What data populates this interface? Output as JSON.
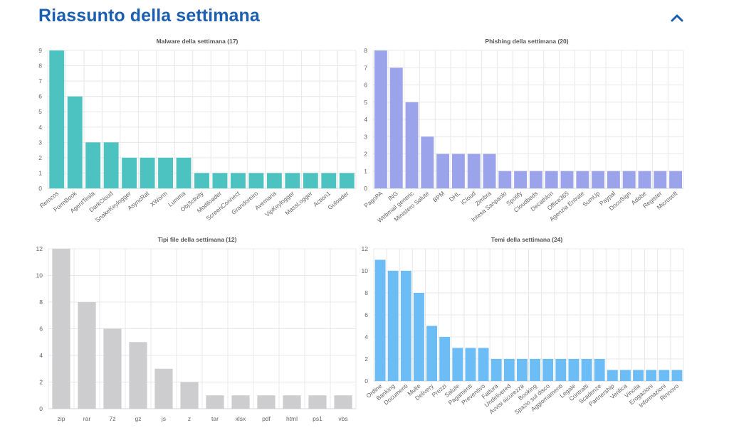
{
  "header": {
    "title": "Riassunto della settimana",
    "collapse_icon": "chevron-up-icon",
    "accent": "#1c5fb0"
  },
  "chart_data": [
    {
      "type": "bar",
      "title": "Malware della settimana (17)",
      "color": "#4cc3c0",
      "categories": [
        "Remcos",
        "FormBook",
        "AgentTesla",
        "DarkCloud",
        "SnakeKeylogger",
        "AsyncRat",
        "XWorm",
        "Lumma",
        "Obj3ctivity",
        "Modiloader",
        "ScreenConnect",
        "Grandoreiro",
        "Avemaria",
        "VipKeylogger",
        "MassLogger",
        "Action1",
        "Guloader"
      ],
      "values": [
        9,
        6,
        3,
        3,
        2,
        2,
        2,
        2,
        1,
        1,
        1,
        1,
        1,
        1,
        1,
        1,
        1
      ],
      "ylim": [
        0,
        9
      ],
      "yticks": [
        0,
        1,
        2,
        3,
        4,
        5,
        6,
        7,
        8,
        9
      ],
      "rotate_labels": true
    },
    {
      "type": "bar",
      "title": "Phishing della settimana (20)",
      "color": "#9ba3ea",
      "categories": [
        "PagoPA",
        "ING",
        "Webmail generic",
        "Ministero Salute",
        "BPM",
        "DHL",
        "iCloud",
        "Zimbra",
        "Intesa Sanpaolo",
        "Spotify",
        "Cloudbeds",
        "Decathlon",
        "Office365",
        "Agenzia Entrate",
        "SumUp",
        "Paypal",
        "DocuSign",
        "Adobe",
        "Register",
        "Microsoft"
      ],
      "values": [
        8,
        7,
        5,
        3,
        2,
        2,
        2,
        2,
        1,
        1,
        1,
        1,
        1,
        1,
        1,
        1,
        1,
        1,
        1,
        1
      ],
      "ylim": [
        0,
        8
      ],
      "yticks": [
        0,
        1,
        2,
        3,
        4,
        5,
        6,
        7,
        8
      ],
      "rotate_labels": true
    },
    {
      "type": "bar",
      "title": "Tipi file della settimana (12)",
      "color": "#cdcdcf",
      "categories": [
        "zip",
        "rar",
        "7z",
        "gz",
        "js",
        "z",
        "tar",
        "xlsx",
        "pdf",
        "html",
        "ps1",
        "vbs"
      ],
      "values": [
        12,
        8,
        6,
        5,
        3,
        2,
        1,
        1,
        1,
        1,
        1,
        1
      ],
      "ylim": [
        0,
        12
      ],
      "yticks": [
        0,
        2,
        4,
        6,
        8,
        10,
        12
      ],
      "rotate_labels": false
    },
    {
      "type": "bar",
      "title": "Temi della settimana (24)",
      "color": "#6cbcf5",
      "categories": [
        "Ordine",
        "Banking",
        "Documenti",
        "Multe",
        "Delivery",
        "Prezzi",
        "Salute",
        "Pagamenti",
        "Preventivo",
        "Fattura",
        "Undelivered",
        "Avvisi sicurezza",
        "Booking",
        "Spazio sul disco",
        "Aggiornamenti",
        "Legale",
        "Contratti",
        "Scadenze",
        "Partnership",
        "Verifica",
        "Vincita",
        "Erogazioni",
        "Informazioni",
        "Rinnovo"
      ],
      "values": [
        11,
        10,
        10,
        8,
        5,
        4,
        3,
        3,
        3,
        2,
        2,
        2,
        2,
        2,
        2,
        2,
        2,
        2,
        1,
        1,
        1,
        1,
        1,
        1
      ],
      "ylim": [
        0,
        12
      ],
      "yticks": [
        0,
        2,
        4,
        6,
        8,
        10,
        12
      ],
      "rotate_labels": true
    }
  ]
}
